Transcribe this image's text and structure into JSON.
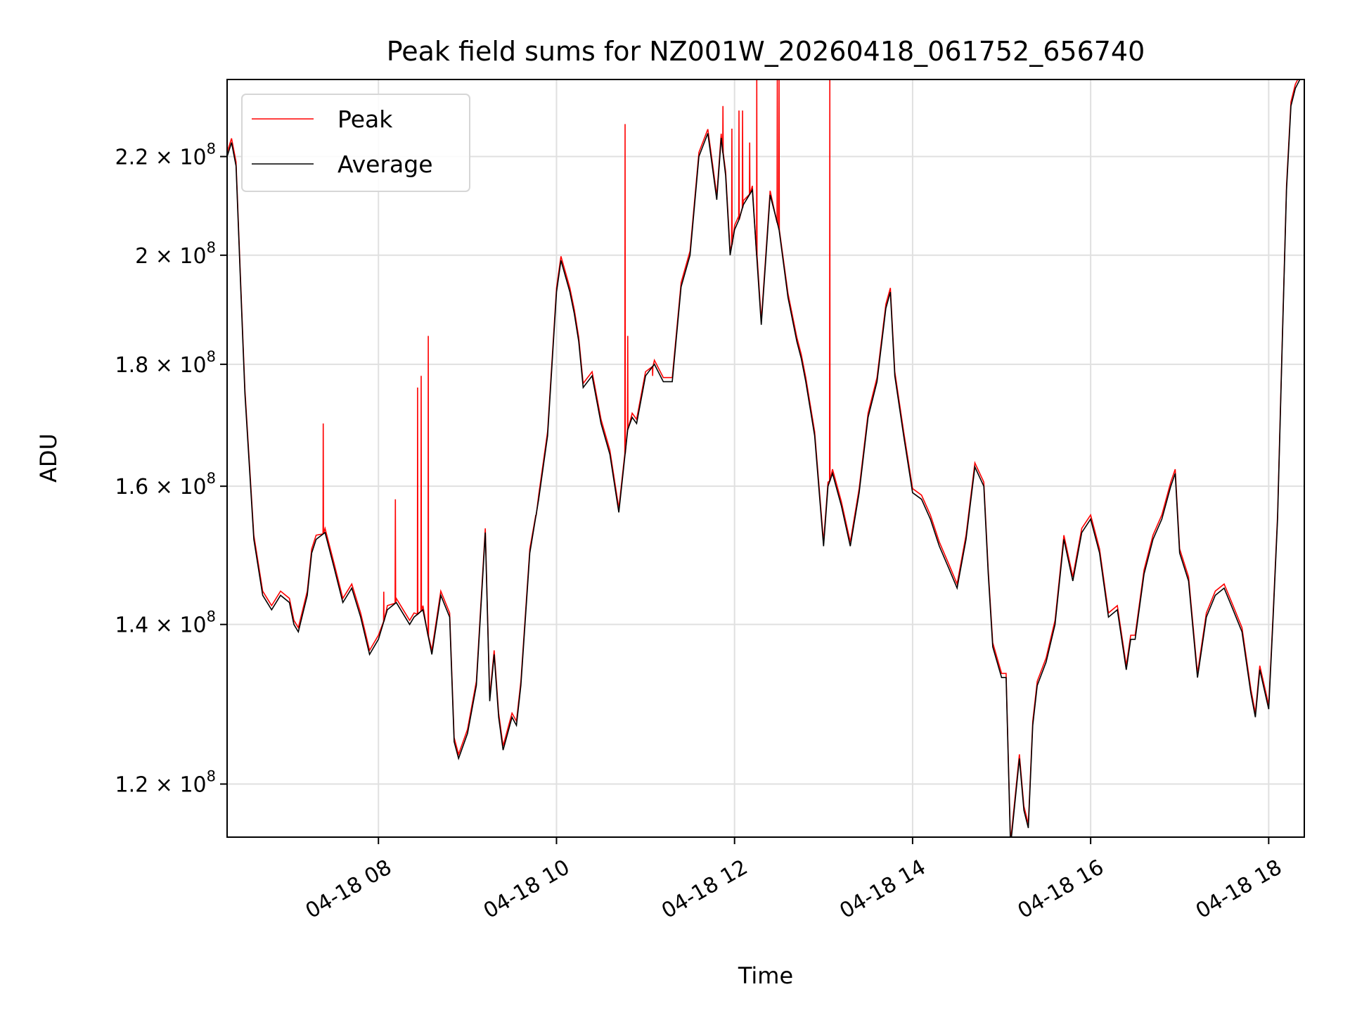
{
  "chart_data": {
    "type": "line",
    "title": "Peak field sums for NZ001W_20260418_061752_656740",
    "xlabel": "Time",
    "ylabel": "ADU",
    "yscale": "log",
    "ylim": [
      114000000,
      237000000
    ],
    "xlim_hours": [
      6.3,
      18.4
    ],
    "grid": true,
    "legend_position": "upper-left",
    "x_ticks": [
      {
        "hour": 8,
        "label": "04-18 08"
      },
      {
        "hour": 10,
        "label": "04-18 10"
      },
      {
        "hour": 12,
        "label": "04-18 12"
      },
      {
        "hour": 14,
        "label": "04-18 14"
      },
      {
        "hour": 16,
        "label": "04-18 16"
      },
      {
        "hour": 18,
        "label": "04-18 18"
      }
    ],
    "y_ticks": [
      {
        "value": 120000000,
        "mantissa": "1.2",
        "exp": "8"
      },
      {
        "value": 140000000,
        "mantissa": "1.4",
        "exp": "8"
      },
      {
        "value": 160000000,
        "mantissa": "1.6",
        "exp": "8"
      },
      {
        "value": 180000000,
        "mantissa": "1.8",
        "exp": "8"
      },
      {
        "value": 200000000,
        "mantissa": "2",
        "exp": "8"
      },
      {
        "value": 220000000,
        "mantissa": "2.2",
        "exp": "8"
      }
    ],
    "tick_times_sign": "×",
    "tick_base": "10",
    "series": [
      {
        "name": "Average",
        "color": "#000000",
        "x_hours": [
          6.3,
          6.35,
          6.4,
          6.45,
          6.5,
          6.6,
          6.7,
          6.8,
          6.9,
          7.0,
          7.05,
          7.1,
          7.2,
          7.25,
          7.3,
          7.4,
          7.5,
          7.6,
          7.7,
          7.8,
          7.9,
          8.0,
          8.1,
          8.2,
          8.3,
          8.35,
          8.4,
          8.5,
          8.6,
          8.7,
          8.8,
          8.85,
          8.9,
          9.0,
          9.1,
          9.2,
          9.25,
          9.3,
          9.35,
          9.4,
          9.5,
          9.55,
          9.6,
          9.7,
          9.8,
          9.9,
          10.0,
          10.05,
          10.1,
          10.15,
          10.2,
          10.25,
          10.3,
          10.4,
          10.5,
          10.6,
          10.7,
          10.8,
          10.85,
          10.9,
          11.0,
          11.1,
          11.2,
          11.3,
          11.4,
          11.5,
          11.6,
          11.7,
          11.75,
          11.8,
          11.85,
          11.9,
          11.95,
          12.0,
          12.05,
          12.1,
          12.2,
          12.3,
          12.35,
          12.4,
          12.5,
          12.6,
          12.7,
          12.75,
          12.8,
          12.9,
          13.0,
          13.05,
          13.1,
          13.2,
          13.3,
          13.4,
          13.5,
          13.6,
          13.7,
          13.75,
          13.8,
          13.9,
          14.0,
          14.1,
          14.2,
          14.3,
          14.4,
          14.5,
          14.6,
          14.7,
          14.8,
          14.85,
          14.9,
          15.0,
          15.05,
          15.1,
          15.2,
          15.25,
          15.3,
          15.35,
          15.4,
          15.5,
          15.6,
          15.7,
          15.8,
          15.9,
          16.0,
          16.1,
          16.2,
          16.3,
          16.4,
          16.45,
          16.5,
          16.6,
          16.7,
          16.8,
          16.9,
          16.95,
          17.0,
          17.1,
          17.2,
          17.3,
          17.4,
          17.5,
          17.6,
          17.7,
          17.8,
          17.85,
          17.9,
          18.0,
          18.05,
          18.1,
          18.15,
          18.2,
          18.25,
          18.3,
          18.35,
          18.4
        ],
        "values": [
          220000000,
          223000000,
          218000000,
          195000000,
          175000000,
          152000000,
          144000000,
          142000000,
          144000000,
          143000000,
          140000000,
          139000000,
          144000000,
          150000000,
          152000000,
          153000000,
          148000000,
          143000000,
          145000000,
          141000000,
          136000000,
          138000000,
          142000000,
          143000000,
          141000000,
          140000000,
          141000000,
          142000000,
          136000000,
          144000000,
          141000000,
          125000000,
          123000000,
          126000000,
          132000000,
          153000000,
          130000000,
          136000000,
          128000000,
          124000000,
          128000000,
          127000000,
          132000000,
          150000000,
          158000000,
          168000000,
          193000000,
          199000000,
          196000000,
          193000000,
          189000000,
          184000000,
          176000000,
          178000000,
          170000000,
          165000000,
          156000000,
          169000000,
          171000000,
          170000000,
          178000000,
          180000000,
          177000000,
          177000000,
          194000000,
          200000000,
          220000000,
          225000000,
          218000000,
          211000000,
          224000000,
          216000000,
          200000000,
          205000000,
          207000000,
          210000000,
          213000000,
          187000000,
          199000000,
          212000000,
          205000000,
          192000000,
          184000000,
          181000000,
          177000000,
          168000000,
          151000000,
          160000000,
          162000000,
          157000000,
          151000000,
          159000000,
          171000000,
          177000000,
          190000000,
          193000000,
          178000000,
          168000000,
          159000000,
          158000000,
          155000000,
          151000000,
          148000000,
          145000000,
          152000000,
          163000000,
          160000000,
          147000000,
          137000000,
          133000000,
          133000000,
          113000000,
          123000000,
          117000000,
          115000000,
          127000000,
          132000000,
          135000000,
          140000000,
          152000000,
          146000000,
          153000000,
          155000000,
          150000000,
          141000000,
          142000000,
          134000000,
          138000000,
          138000000,
          147000000,
          152000000,
          155000000,
          160000000,
          162000000,
          150000000,
          146000000,
          133000000,
          141000000,
          144000000,
          145000000,
          142000000,
          139000000,
          131000000,
          128000000,
          134000000,
          129000000,
          141000000,
          155000000,
          182000000,
          213000000,
          231000000,
          235000000,
          237000000,
          237000000
        ]
      },
      {
        "name": "Peak",
        "color": "#ff0000",
        "spikes": [
          {
            "hour": 7.38,
            "value": 170000000
          },
          {
            "hour": 8.06,
            "value": 144500000
          },
          {
            "hour": 8.19,
            "value": 158000000
          },
          {
            "hour": 8.44,
            "value": 176000000
          },
          {
            "hour": 8.48,
            "value": 178000000
          },
          {
            "hour": 8.56,
            "value": 185000000
          },
          {
            "hour": 9.77,
            "value": 155500000
          },
          {
            "hour": 10.77,
            "value": 227000000
          },
          {
            "hour": 10.8,
            "value": 185000000
          },
          {
            "hour": 11.08,
            "value": 178000000
          },
          {
            "hour": 11.87,
            "value": 231000000
          },
          {
            "hour": 11.97,
            "value": 226000000
          },
          {
            "hour": 12.05,
            "value": 230000000
          },
          {
            "hour": 12.09,
            "value": 230000000
          },
          {
            "hour": 12.17,
            "value": 223000000
          },
          {
            "hour": 12.25,
            "value": 237000000
          },
          {
            "hour": 12.48,
            "value": 237000000
          },
          {
            "hour": 12.5,
            "value": 237000000
          },
          {
            "hour": 13.07,
            "value": 237000000
          }
        ]
      }
    ]
  }
}
